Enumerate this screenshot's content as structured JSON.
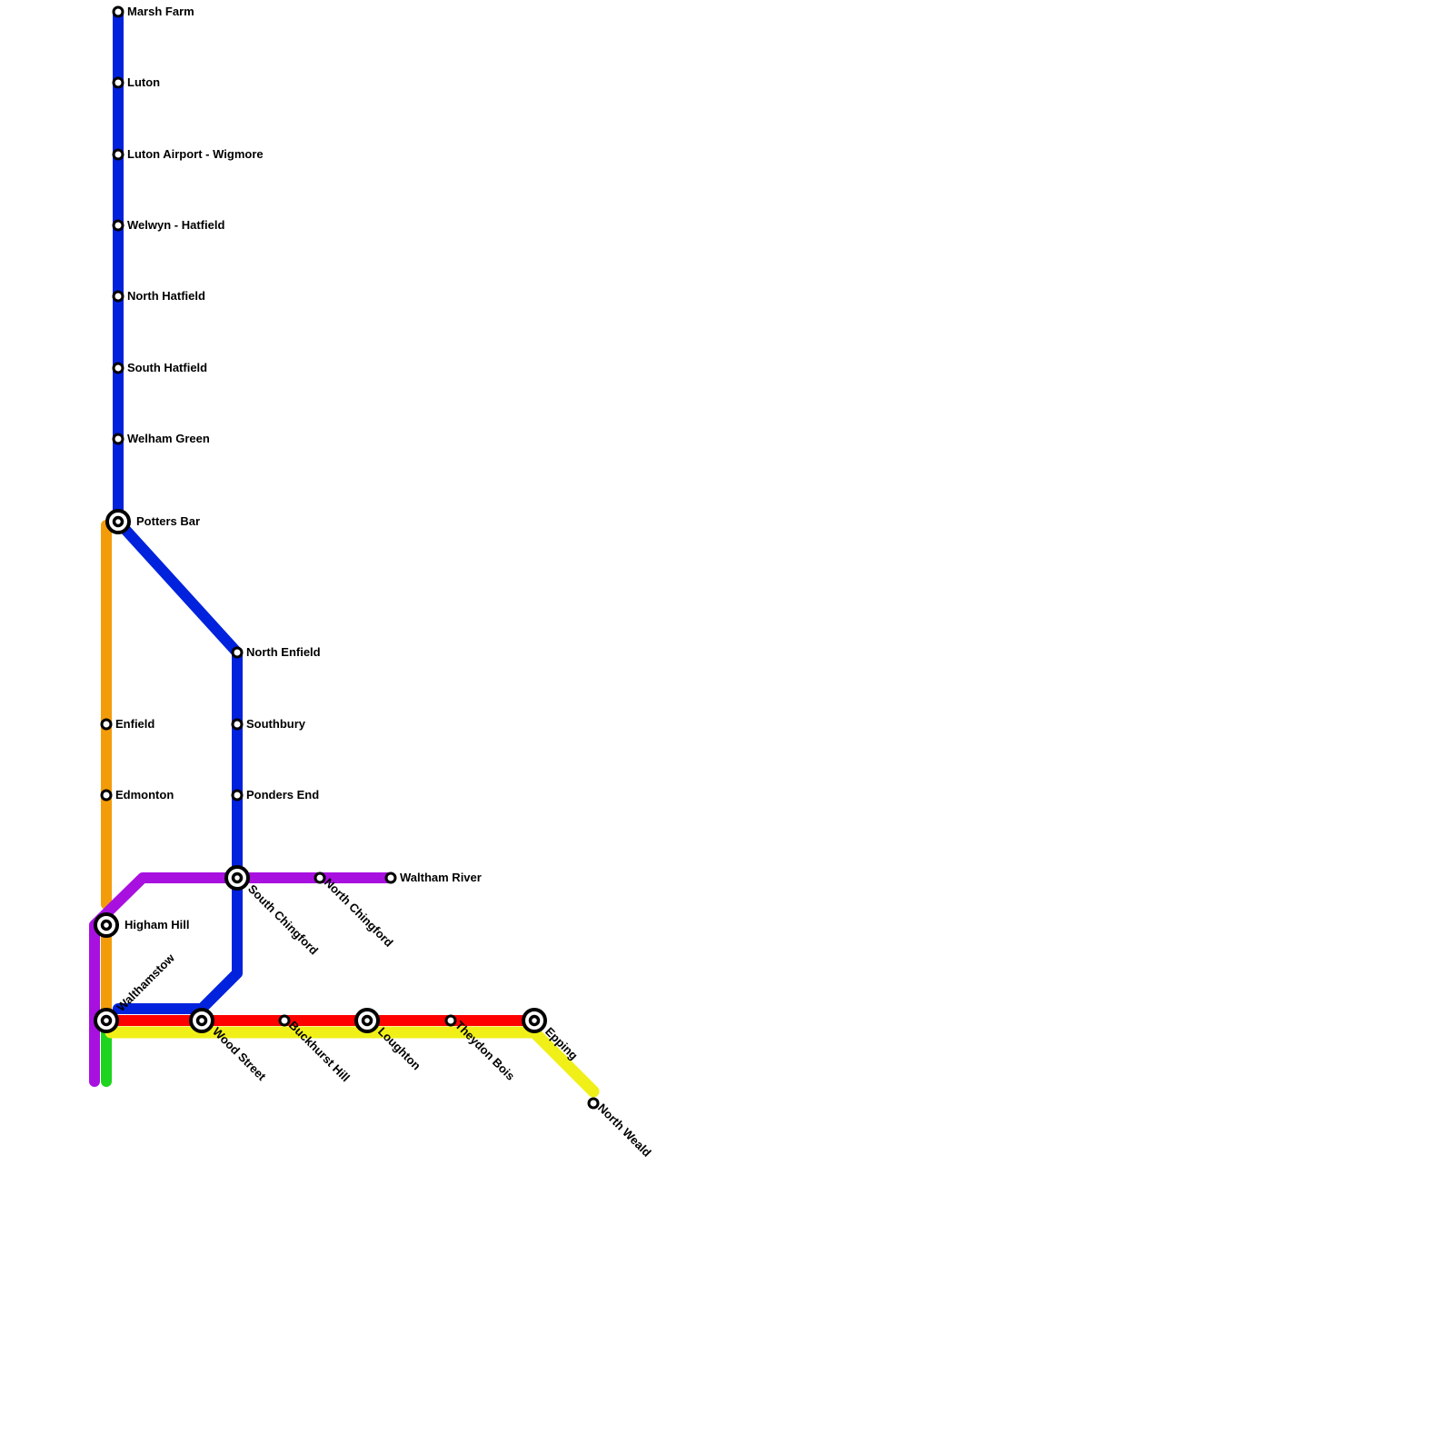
{
  "lines": [
    {
      "id": "blue",
      "color": "#0022dd"
    },
    {
      "id": "orange",
      "color": "#f39c0a"
    },
    {
      "id": "purple",
      "color": "#a810e0"
    },
    {
      "id": "red",
      "color": "#ff0000"
    },
    {
      "id": "yellow",
      "color": "#f0f018"
    },
    {
      "id": "green",
      "color": "#1ed41e"
    }
  ],
  "stations": [
    {
      "name": "Marsh Farm",
      "interchange": false
    },
    {
      "name": "Luton",
      "interchange": false
    },
    {
      "name": "Luton Airport - Wigmore",
      "interchange": false
    },
    {
      "name": "Welwyn - Hatfield",
      "interchange": false
    },
    {
      "name": "North Hatfield",
      "interchange": false
    },
    {
      "name": "South Hatfield",
      "interchange": false
    },
    {
      "name": "Welham Green",
      "interchange": false
    },
    {
      "name": "Potters Bar",
      "interchange": true
    },
    {
      "name": "North Enfield",
      "interchange": false
    },
    {
      "name": "Southbury",
      "interchange": false
    },
    {
      "name": "Ponders End",
      "interchange": false
    },
    {
      "name": "Enfield",
      "interchange": false
    },
    {
      "name": "Edmonton",
      "interchange": false
    },
    {
      "name": "South Chingford",
      "interchange": true
    },
    {
      "name": "North Chingford",
      "interchange": false
    },
    {
      "name": "Waltham River",
      "interchange": false
    },
    {
      "name": "Higham Hill",
      "interchange": true
    },
    {
      "name": "Walthamstow",
      "interchange": true
    },
    {
      "name": "Wood Street",
      "interchange": true
    },
    {
      "name": "Buckhurst Hill",
      "interchange": false
    },
    {
      "name": "Loughton",
      "interchange": true
    },
    {
      "name": "Theydon Bois",
      "interchange": false
    },
    {
      "name": "Epping",
      "interchange": true
    },
    {
      "name": "North Weald",
      "interchange": false
    }
  ]
}
